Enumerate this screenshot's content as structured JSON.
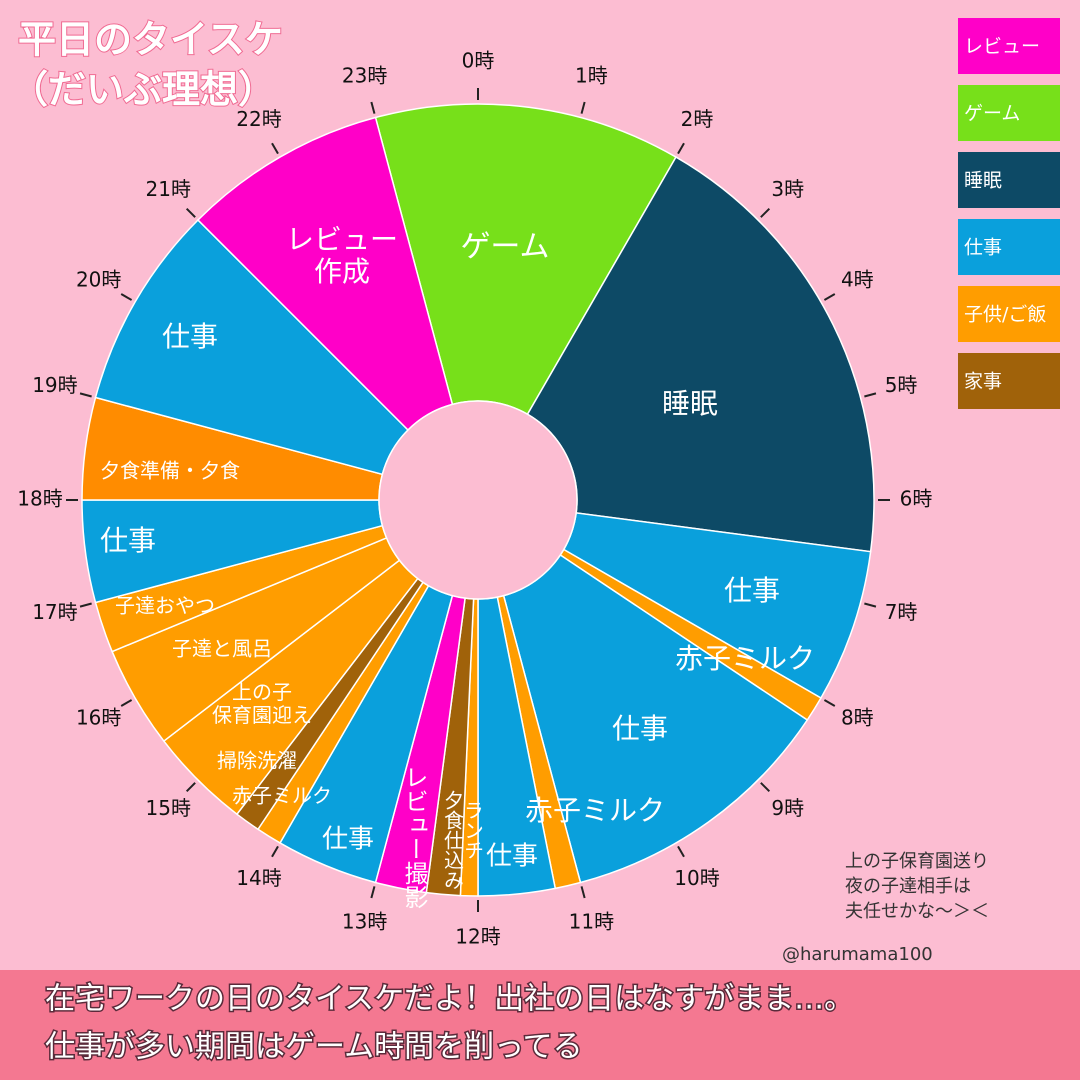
{
  "chart_data": {
    "type": "donut",
    "title": "平日のタイスケ",
    "subtitle": "（だいぶ理想）",
    "legend": [
      {
        "name": "レビュー",
        "color": "#ff00c8"
      },
      {
        "name": "ゲーム",
        "color": "#77e01a"
      },
      {
        "name": "睡眠",
        "color": "#0d4a66"
      },
      {
        "name": "仕事",
        "color": "#0aa0dc"
      },
      {
        "name": "子供/ご飯",
        "color": "#ff9d00"
      },
      {
        "name": "家事",
        "color": "#a0620a"
      }
    ],
    "segments": [
      {
        "label": "ゲーム",
        "color": "#77e01a",
        "start": 23,
        "end": 2
      },
      {
        "label": "睡眠",
        "color": "#0d4a66",
        "start": 2,
        "end": 6.5
      },
      {
        "label": "仕事",
        "color": "#0aa0dc",
        "start": 6.5,
        "end": 8
      },
      {
        "label": "赤子ミルク",
        "color": "#ff9d00",
        "start": 8,
        "end": 8.25
      },
      {
        "label": "仕事",
        "color": "#0aa0dc",
        "start": 8.25,
        "end": 11
      },
      {
        "label": "赤子ミルク",
        "color": "#ff9d00",
        "start": 11,
        "end": 11.25
      },
      {
        "label": "仕事",
        "color": "#0aa0dc",
        "start": 11.25,
        "end": 12
      },
      {
        "label": "ランチ",
        "color": "#ff9d00",
        "start": 12,
        "end": 12.17
      },
      {
        "label": "夕食仕込み",
        "color": "#a0620a",
        "start": 12.17,
        "end": 12.5
      },
      {
        "label": "レビュー撮影",
        "color": "#ff00c8",
        "start": 12.5,
        "end": 13
      },
      {
        "label": "仕事",
        "color": "#0aa0dc",
        "start": 13,
        "end": 14
      },
      {
        "label": "赤子ミルク",
        "color": "#ff9d00",
        "start": 14,
        "end": 14.25
      },
      {
        "label": "掃除洗濯",
        "color": "#a0620a",
        "start": 14.25,
        "end": 14.5
      },
      {
        "label": [
          "上の子",
          "保育園迎え"
        ],
        "color": "#ff9d00",
        "start": 14.5,
        "end": 15.5
      },
      {
        "label": "子達と風呂",
        "color": "#ff9d00",
        "start": 15.5,
        "end": 16.5
      },
      {
        "label": "子達おやつ",
        "color": "#ff9d00",
        "start": 16.5,
        "end": 17
      },
      {
        "label": "仕事",
        "color": "#0aa0dc",
        "start": 17,
        "end": 18
      },
      {
        "label": "夕食準備・夕食",
        "color": "#ff8c00",
        "start": 18,
        "end": 19
      },
      {
        "label": "仕事",
        "color": "#0aa0dc",
        "start": 19,
        "end": 21
      },
      {
        "label": [
          "レビュー",
          "作成"
        ],
        "color": "#ff00c8",
        "start": 21,
        "end": 23
      }
    ],
    "ticks": [
      {
        "value": 0,
        "label": "0時"
      },
      {
        "value": 1,
        "label": "1時"
      },
      {
        "value": 2,
        "label": "2時"
      },
      {
        "value": 3,
        "label": "3時"
      },
      {
        "value": 4,
        "label": "4時"
      },
      {
        "value": 5,
        "label": "5時"
      },
      {
        "value": 6,
        "label": "6時"
      },
      {
        "value": 7,
        "label": "7時"
      },
      {
        "value": 8,
        "label": "8時"
      },
      {
        "value": 9,
        "label": "9時"
      },
      {
        "value": 10,
        "label": "10時"
      },
      {
        "value": 11,
        "label": "11時"
      },
      {
        "value": 12,
        "label": "12時"
      },
      {
        "value": 13,
        "label": "13時"
      },
      {
        "value": 14,
        "label": "14時"
      },
      {
        "value": 15,
        "label": "15時"
      },
      {
        "value": 16,
        "label": "16時"
      },
      {
        "value": 17,
        "label": "17時"
      },
      {
        "value": 18,
        "label": "18時"
      },
      {
        "value": 19,
        "label": "19時"
      },
      {
        "value": 20,
        "label": "20時"
      },
      {
        "value": 21,
        "label": "21時"
      },
      {
        "value": 22,
        "label": "22時"
      },
      {
        "value": 23,
        "label": "23時"
      }
    ],
    "annotation": [
      "上の子保育園送り",
      "夜の子達相手は",
      "夫任せかな〜＞＜"
    ],
    "credit": "@harumama100"
  },
  "footer": [
    "在宅ワークの日のタイスケだよ！出社の日はなすがまま…。",
    "仕事が多い期間はゲーム時間を削ってる"
  ]
}
